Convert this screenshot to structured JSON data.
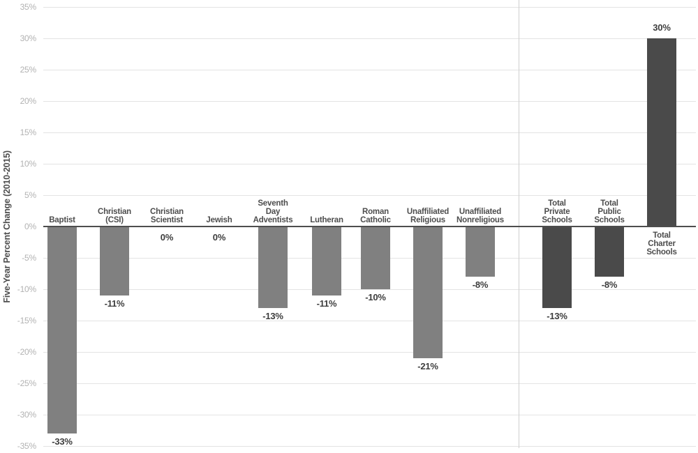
{
  "chart_data": {
    "type": "bar",
    "title": "",
    "xlabel": "",
    "ylabel": "Five-Year Percent Change (2010-2015)",
    "ylim": [
      -35,
      35
    ],
    "ytick_step": 5,
    "grid": "horizontal",
    "legend": "none",
    "yticks": [
      {
        "value": 35,
        "label": "35%"
      },
      {
        "value": 30,
        "label": "30%"
      },
      {
        "value": 25,
        "label": "25%"
      },
      {
        "value": 20,
        "label": "20%"
      },
      {
        "value": 15,
        "label": "15%"
      },
      {
        "value": 10,
        "label": "10%"
      },
      {
        "value": 5,
        "label": "5%"
      },
      {
        "value": 0,
        "label": "0%"
      },
      {
        "value": -5,
        "label": "-5%"
      },
      {
        "value": -10,
        "label": "-10%"
      },
      {
        "value": -15,
        "label": "-15%"
      },
      {
        "value": -20,
        "label": "-20%"
      },
      {
        "value": -25,
        "label": "-25%"
      },
      {
        "value": -30,
        "label": "-30%"
      },
      {
        "value": -35,
        "label": "-35%"
      }
    ],
    "groups": {
      "religious": {
        "color": "#808080"
      },
      "total": {
        "color": "#4a4a4a"
      }
    },
    "separator_between": [
      "Unaffiliated Nonreligious",
      "Total Private Schools"
    ],
    "categories": [
      {
        "name": "Baptist",
        "label_lines": [
          "Baptist"
        ],
        "value": -33,
        "value_label": "-33%",
        "group": "religious"
      },
      {
        "name": "Christian (CSI)",
        "label_lines": [
          "Christian",
          "(CSI)"
        ],
        "value": -11,
        "value_label": "-11%",
        "group": "religious"
      },
      {
        "name": "Christian Scientist",
        "label_lines": [
          "Christian",
          "Scientist"
        ],
        "value": 0,
        "value_label": "0%",
        "group": "religious"
      },
      {
        "name": "Jewish",
        "label_lines": [
          "Jewish"
        ],
        "value": 0,
        "value_label": "0%",
        "group": "religious"
      },
      {
        "name": "Seventh Day Adventists",
        "label_lines": [
          "Seventh",
          "Day",
          "Adventists"
        ],
        "value": -13,
        "value_label": "-13%",
        "group": "religious"
      },
      {
        "name": "Lutheran",
        "label_lines": [
          "Lutheran"
        ],
        "value": -11,
        "value_label": "-11%",
        "group": "religious"
      },
      {
        "name": "Roman Catholic",
        "label_lines": [
          "Roman",
          "Catholic"
        ],
        "value": -10,
        "value_label": "-10%",
        "group": "religious"
      },
      {
        "name": "Unaffiliated Religious",
        "label_lines": [
          "Unaffiliated",
          "Religious"
        ],
        "value": -21,
        "value_label": "-21%",
        "group": "religious"
      },
      {
        "name": "Unaffiliated Nonreligious",
        "label_lines": [
          "Unaffiliated",
          "Nonreligious"
        ],
        "value": -8,
        "value_label": "-8%",
        "group": "religious"
      },
      {
        "name": "Total Private Schools",
        "label_lines": [
          "Total",
          "Private",
          "Schools"
        ],
        "value": -13,
        "value_label": "-13%",
        "group": "total"
      },
      {
        "name": "Total Public Schools",
        "label_lines": [
          "Total",
          "Public",
          "Schools"
        ],
        "value": -8,
        "value_label": "-8%",
        "group": "total"
      },
      {
        "name": "Total Charter Schools",
        "label_lines": [
          "Total",
          "Charter",
          "Schools"
        ],
        "value": 30,
        "value_label": "30%",
        "group": "total"
      }
    ],
    "colors": {
      "gridline": "#e3e3e3",
      "zero_line": "#4d4d4d",
      "tick_label": "#b2b2b2",
      "category_label": "#4d4d4d",
      "value_label": "#3d3d3d",
      "separator": "#cfcfcf",
      "background": "#ffffff"
    }
  }
}
